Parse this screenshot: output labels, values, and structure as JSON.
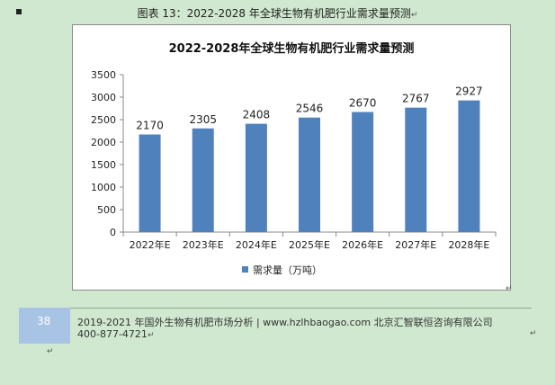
{
  "caption": {
    "text": "图表  13：2022-2028 年全球生物有机肥行业需求量预测",
    "return_mark": "↵"
  },
  "chart_data": {
    "type": "bar",
    "title": "2022-2028年全球生物有机肥行业需求量预测",
    "categories": [
      "2022年E",
      "2023年E",
      "2024年E",
      "2025年E",
      "2026年E",
      "2027年E",
      "2028年E"
    ],
    "series": [
      {
        "name": "需求量（万吨）",
        "values": [
          2170,
          2305,
          2408,
          2546,
          2670,
          2767,
          2927
        ],
        "color": "#4f81bd"
      }
    ],
    "ylim": [
      0,
      3500
    ],
    "yticks": [
      0,
      500,
      1000,
      1500,
      2000,
      2500,
      3000,
      3500
    ],
    "xlabel": "",
    "ylabel": "",
    "data_labels": true,
    "grid": false,
    "legend": "bottom"
  },
  "footer": {
    "page_number": "38",
    "line1": "2019-2021 年国外生物有机肥市场分析 | www.hzlhbaogao.com 北京汇智联恒咨询有限公司",
    "line2": "400-877-4721",
    "return_mark": "↵"
  }
}
